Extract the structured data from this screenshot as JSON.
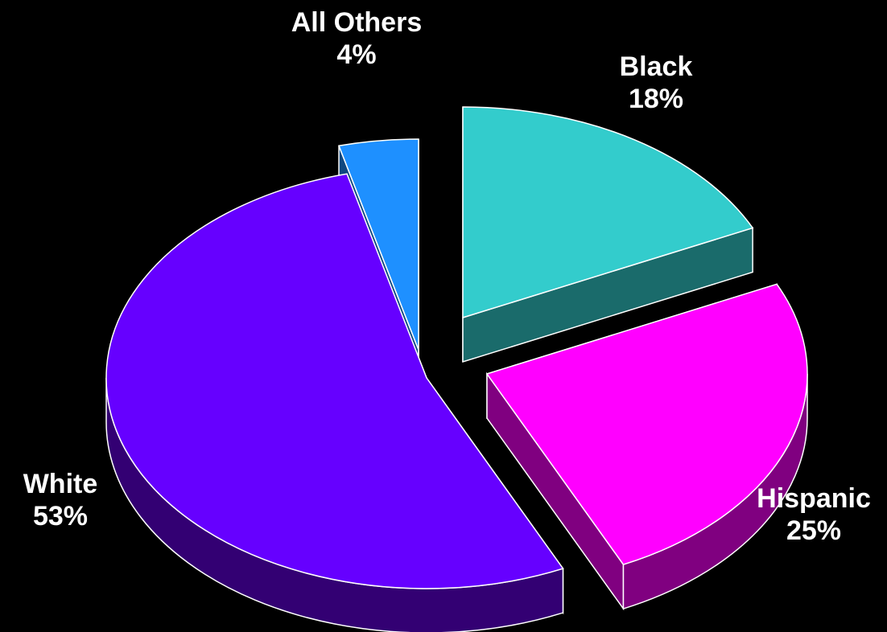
{
  "chart_data": {
    "type": "pie",
    "style": "3d-exploded",
    "slices": [
      {
        "name": "Black",
        "label": "18%",
        "value": 18,
        "color": "#33CCCC",
        "side_color": "#1A6B6B"
      },
      {
        "name": "Hispanic",
        "label": "25%",
        "value": 25,
        "color": "#FF00FF",
        "side_color": "#800080"
      },
      {
        "name": "White",
        "label": "53%",
        "value": 53,
        "color": "#6600FF",
        "side_color": "#330073"
      },
      {
        "name": "All Others",
        "label": "4%",
        "value": 4,
        "color": "#1E90FF",
        "side_color": "#0F4880"
      }
    ],
    "background": "#000000",
    "outline_color": "#FFFFFF"
  }
}
